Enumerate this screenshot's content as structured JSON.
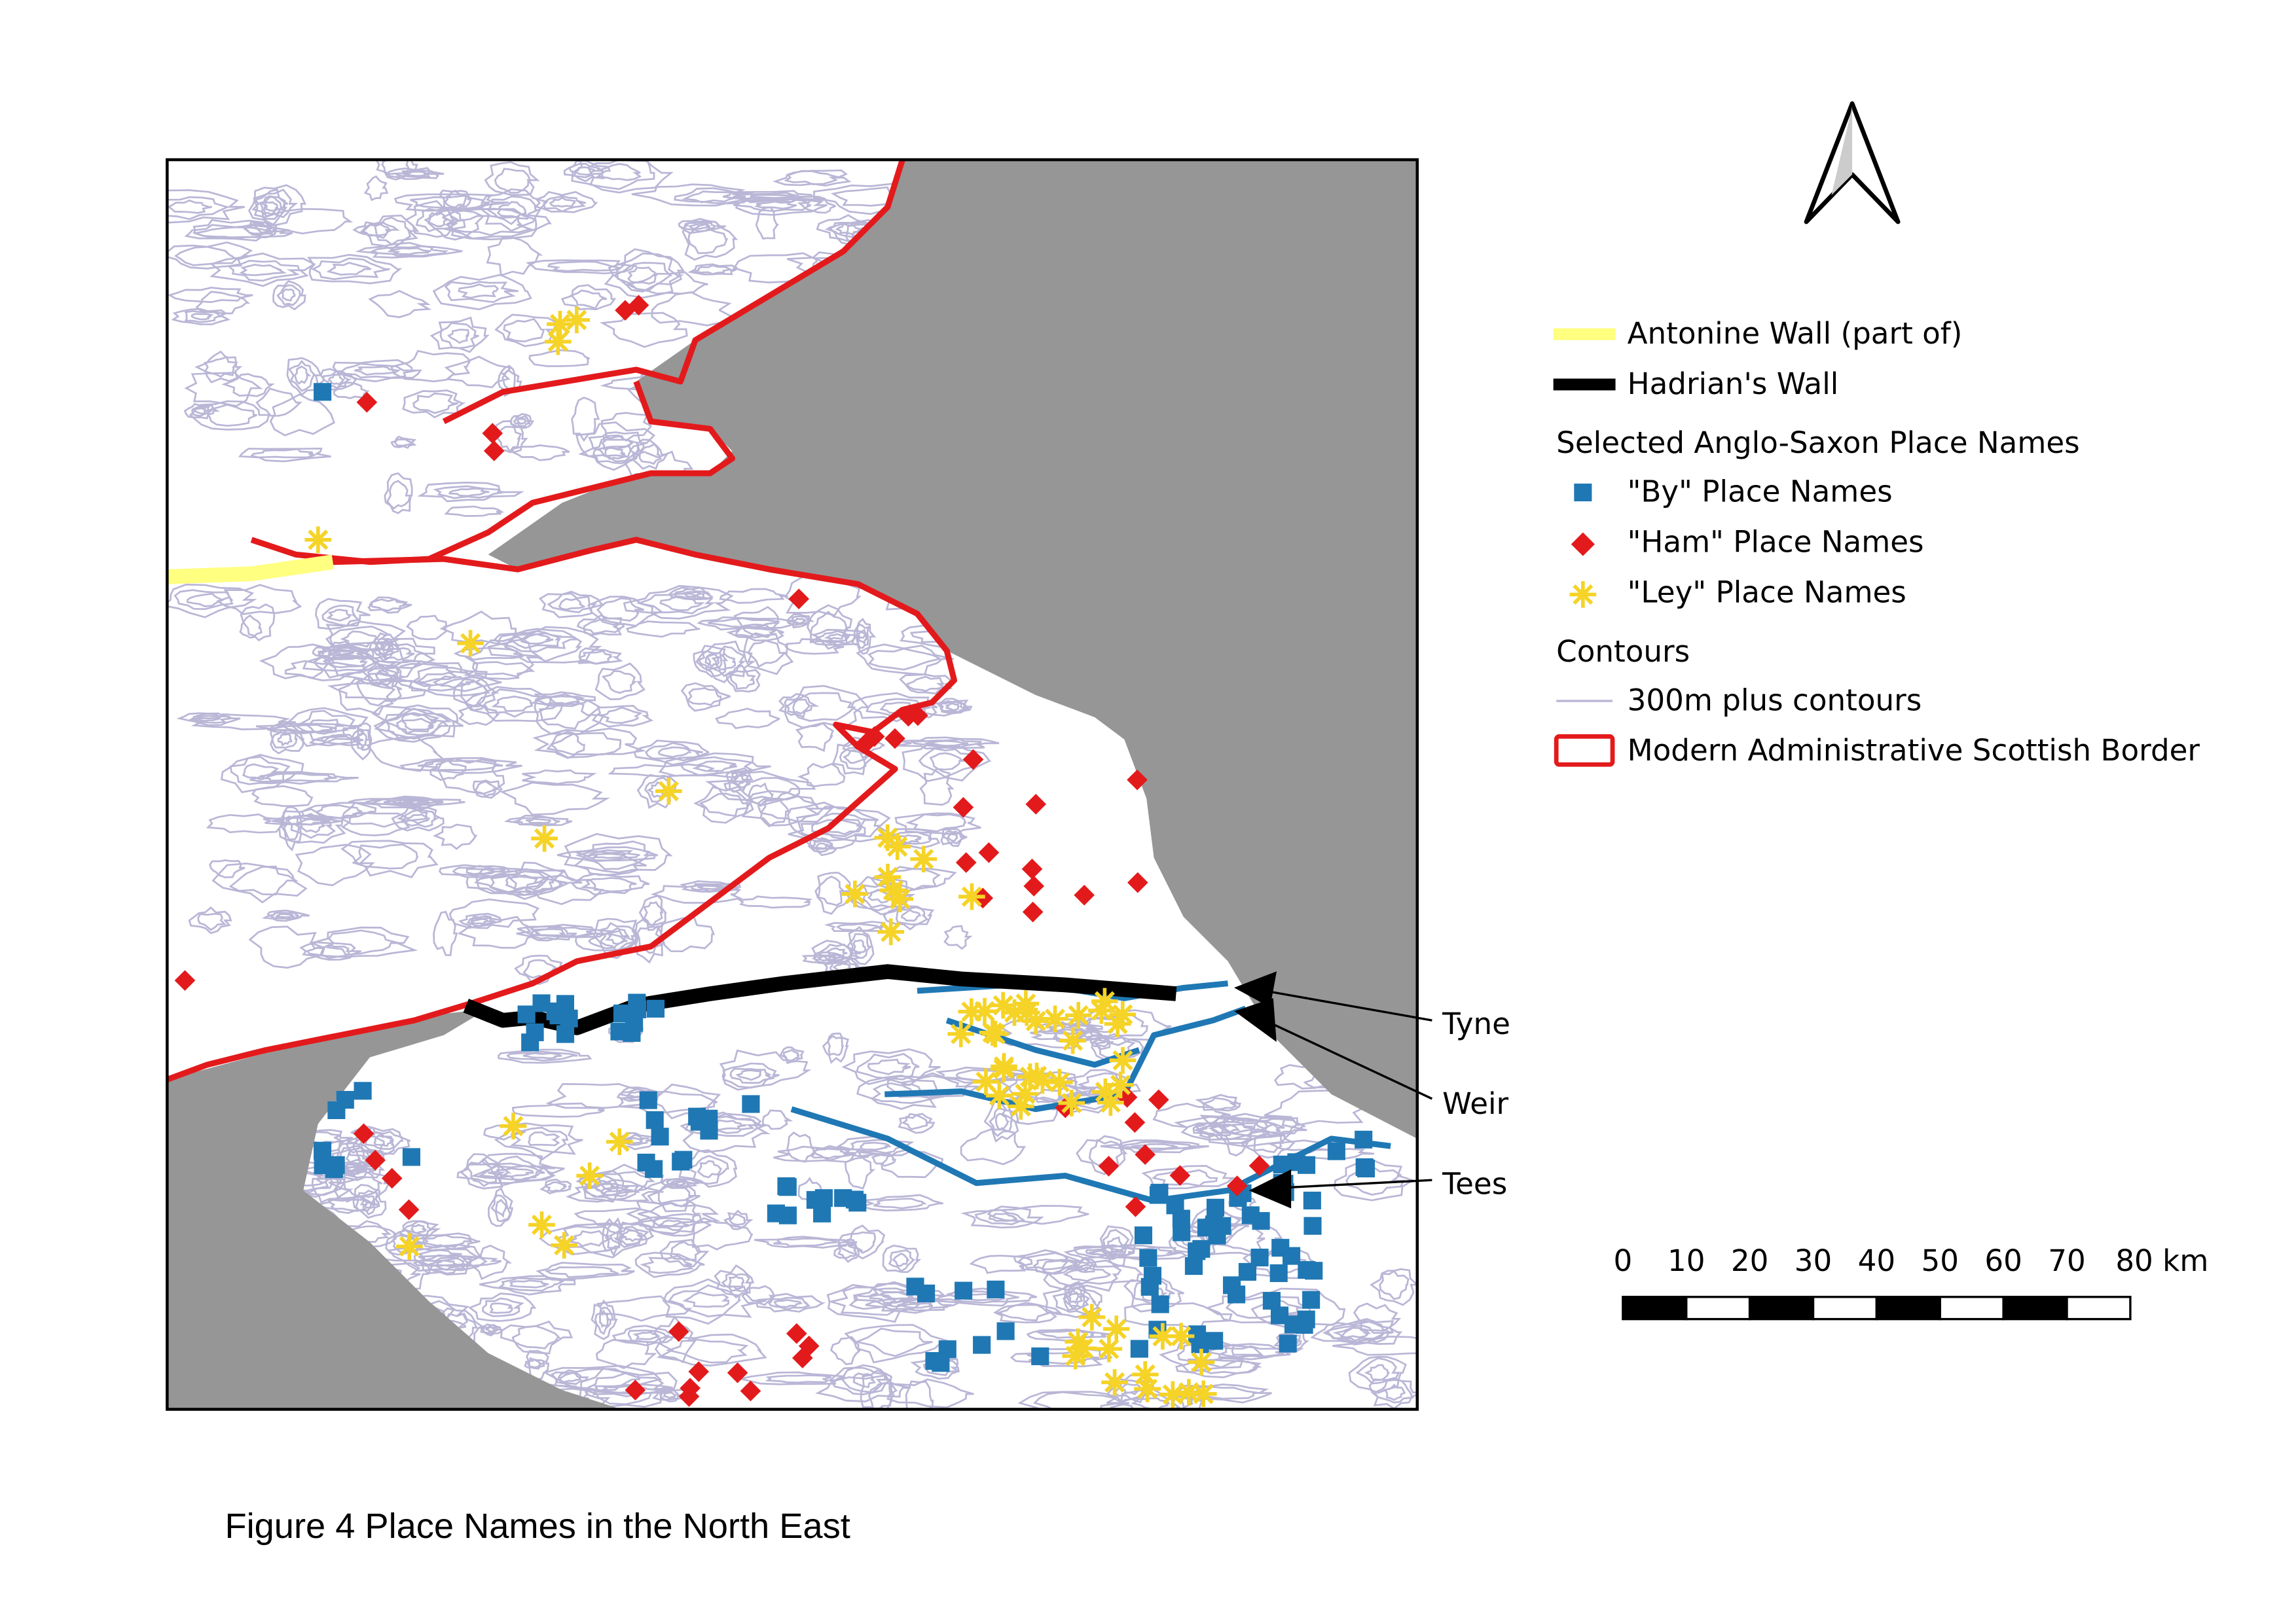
{
  "map": {
    "legend": {
      "antonine_wall": "Antonine Wall (part of)",
      "hadrians_wall": "Hadrian's Wall",
      "place_names_heading": "Selected Anglo-Saxon Place Names",
      "by": "\"By\" Place Names",
      "ham": "\"Ham\" Place Names",
      "ley": "\"Ley\" Place Names",
      "contours_heading": "Contours",
      "contours": "300m plus contours",
      "border": "Modern Administrative Scottish Border"
    },
    "rivers": [
      "Tyne",
      "Weir",
      "Tees"
    ],
    "scale_bar": [
      "0",
      "10",
      "20",
      "30",
      "40",
      "50",
      "60",
      "70",
      "80 km"
    ]
  },
  "caption": "Figure 4 Place Names in the North East"
}
